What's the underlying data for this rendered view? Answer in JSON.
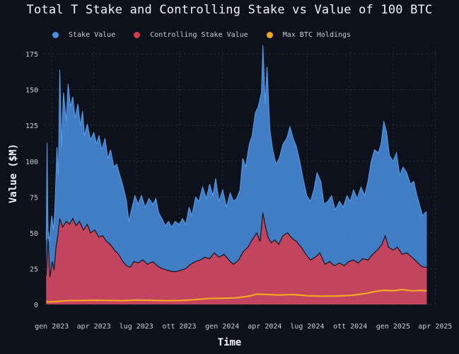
{
  "chart_data": {
    "type": "area",
    "title": "Total T Stake and Controlling Stake vs Value of 100 BTC",
    "xlabel": "Time",
    "ylabel": "Value ($M)",
    "ylim": [
      0,
      180
    ],
    "yticks": [
      0,
      25,
      50,
      75,
      100,
      125,
      150,
      175
    ],
    "xticks": [
      {
        "date": "2023-01-01",
        "label": "gen 2023"
      },
      {
        "date": "2023-04-01",
        "label": "apr 2023"
      },
      {
        "date": "2023-07-01",
        "label": "lug 2023"
      },
      {
        "date": "2023-10-01",
        "label": "ott 2023"
      },
      {
        "date": "2024-01-01",
        "label": "gen 2024"
      },
      {
        "date": "2024-04-01",
        "label": "apr 2024"
      },
      {
        "date": "2024-07-01",
        "label": "lug 2024"
      },
      {
        "date": "2024-10-01",
        "label": "ott 2024"
      },
      {
        "date": "2025-01-01",
        "label": "gen 2025"
      },
      {
        "date": "2025-04-01",
        "label": "apr 2025"
      }
    ],
    "xlim": [
      "2022-12-15",
      "2025-04-05"
    ],
    "grid": true,
    "legend": "top-left",
    "series": [
      {
        "name": "Stake Value",
        "color": "#4a90e2",
        "points": [
          [
            "2022-12-20",
            45
          ],
          [
            "2022-12-22",
            113
          ],
          [
            "2022-12-24",
            52
          ],
          [
            "2022-12-27",
            44
          ],
          [
            "2023-01-01",
            62
          ],
          [
            "2023-01-05",
            52
          ],
          [
            "2023-01-08",
            70
          ],
          [
            "2023-01-12",
            110
          ],
          [
            "2023-01-15",
            90
          ],
          [
            "2023-01-18",
            164
          ],
          [
            "2023-01-22",
            110
          ],
          [
            "2023-01-26",
            148
          ],
          [
            "2023-02-01",
            128
          ],
          [
            "2023-02-05",
            154
          ],
          [
            "2023-02-10",
            138
          ],
          [
            "2023-02-15",
            145
          ],
          [
            "2023-02-20",
            130
          ],
          [
            "2023-02-26",
            140
          ],
          [
            "2023-03-03",
            125
          ],
          [
            "2023-03-08",
            135
          ],
          [
            "2023-03-12",
            118
          ],
          [
            "2023-03-18",
            126
          ],
          [
            "2023-03-25",
            115
          ],
          [
            "2023-04-01",
            120
          ],
          [
            "2023-04-07",
            112
          ],
          [
            "2023-04-12",
            118
          ],
          [
            "2023-04-18",
            108
          ],
          [
            "2023-04-25",
            116
          ],
          [
            "2023-05-01",
            102
          ],
          [
            "2023-05-07",
            108
          ],
          [
            "2023-05-14",
            96
          ],
          [
            "2023-05-20",
            98
          ],
          [
            "2023-05-27",
            90
          ],
          [
            "2023-06-03",
            82
          ],
          [
            "2023-06-10",
            72
          ],
          [
            "2023-06-15",
            58
          ],
          [
            "2023-06-22",
            68
          ],
          [
            "2023-06-28",
            76
          ],
          [
            "2023-07-05",
            70
          ],
          [
            "2023-07-12",
            76
          ],
          [
            "2023-07-20",
            68
          ],
          [
            "2023-07-28",
            74
          ],
          [
            "2023-08-05",
            70
          ],
          [
            "2023-08-12",
            74
          ],
          [
            "2023-08-18",
            64
          ],
          [
            "2023-08-25",
            60
          ],
          [
            "2023-09-01",
            55
          ],
          [
            "2023-09-08",
            58
          ],
          [
            "2023-09-15",
            54
          ],
          [
            "2023-09-22",
            58
          ],
          [
            "2023-10-01",
            56
          ],
          [
            "2023-10-08",
            60
          ],
          [
            "2023-10-15",
            56
          ],
          [
            "2023-10-22",
            68
          ],
          [
            "2023-10-28",
            62
          ],
          [
            "2023-11-05",
            75
          ],
          [
            "2023-11-12",
            72
          ],
          [
            "2023-11-20",
            82
          ],
          [
            "2023-11-28",
            74
          ],
          [
            "2023-12-05",
            84
          ],
          [
            "2023-12-12",
            76
          ],
          [
            "2023-12-18",
            88
          ],
          [
            "2023-12-25",
            72
          ],
          [
            "2024-01-02",
            80
          ],
          [
            "2024-01-10",
            68
          ],
          [
            "2024-01-18",
            78
          ],
          [
            "2024-01-25",
            72
          ],
          [
            "2024-02-01",
            74
          ],
          [
            "2024-02-08",
            80
          ],
          [
            "2024-02-14",
            102
          ],
          [
            "2024-02-20",
            96
          ],
          [
            "2024-02-28",
            112
          ],
          [
            "2024-03-05",
            118
          ],
          [
            "2024-03-12",
            134
          ],
          [
            "2024-03-18",
            138
          ],
          [
            "2024-03-25",
            148
          ],
          [
            "2024-03-28",
            181
          ],
          [
            "2024-04-02",
            140
          ],
          [
            "2024-04-06",
            166
          ],
          [
            "2024-04-12",
            122
          ],
          [
            "2024-04-18",
            108
          ],
          [
            "2024-04-25",
            98
          ],
          [
            "2024-05-02",
            102
          ],
          [
            "2024-05-10",
            112
          ],
          [
            "2024-05-18",
            116
          ],
          [
            "2024-05-25",
            124
          ],
          [
            "2024-06-01",
            116
          ],
          [
            "2024-06-08",
            110
          ],
          [
            "2024-06-15",
            100
          ],
          [
            "2024-06-22",
            88
          ],
          [
            "2024-06-30",
            76
          ],
          [
            "2024-07-08",
            72
          ],
          [
            "2024-07-15",
            80
          ],
          [
            "2024-07-22",
            92
          ],
          [
            "2024-07-30",
            86
          ],
          [
            "2024-08-06",
            70
          ],
          [
            "2024-08-14",
            72
          ],
          [
            "2024-08-22",
            76
          ],
          [
            "2024-08-30",
            66
          ],
          [
            "2024-09-08",
            72
          ],
          [
            "2024-09-16",
            68
          ],
          [
            "2024-09-24",
            76
          ],
          [
            "2024-10-01",
            72
          ],
          [
            "2024-10-08",
            80
          ],
          [
            "2024-10-16",
            74
          ],
          [
            "2024-10-24",
            82
          ],
          [
            "2024-11-01",
            76
          ],
          [
            "2024-11-08",
            86
          ],
          [
            "2024-11-15",
            100
          ],
          [
            "2024-11-22",
            108
          ],
          [
            "2024-11-30",
            106
          ],
          [
            "2024-12-06",
            112
          ],
          [
            "2024-12-12",
            128
          ],
          [
            "2024-12-18",
            120
          ],
          [
            "2024-12-24",
            104
          ],
          [
            "2025-01-01",
            100
          ],
          [
            "2025-01-08",
            106
          ],
          [
            "2025-01-15",
            90
          ],
          [
            "2025-01-22",
            96
          ],
          [
            "2025-01-30",
            92
          ],
          [
            "2025-02-07",
            84
          ],
          [
            "2025-02-14",
            86
          ],
          [
            "2025-02-21",
            76
          ],
          [
            "2025-02-28",
            68
          ],
          [
            "2025-03-05",
            62
          ],
          [
            "2025-03-10",
            64
          ],
          [
            "2025-03-14",
            65
          ]
        ]
      },
      {
        "name": "Controlling Stake Value",
        "color": "#d9394e",
        "points": [
          [
            "2022-12-20",
            20
          ],
          [
            "2022-12-24",
            46
          ],
          [
            "2022-12-28",
            19
          ],
          [
            "2023-01-02",
            30
          ],
          [
            "2023-01-06",
            24
          ],
          [
            "2023-01-10",
            40
          ],
          [
            "2023-01-14",
            48
          ],
          [
            "2023-01-18",
            60
          ],
          [
            "2023-01-24",
            54
          ],
          [
            "2023-02-01",
            58
          ],
          [
            "2023-02-08",
            56
          ],
          [
            "2023-02-15",
            60
          ],
          [
            "2023-02-22",
            55
          ],
          [
            "2023-03-01",
            58
          ],
          [
            "2023-03-10",
            52
          ],
          [
            "2023-03-18",
            56
          ],
          [
            "2023-03-25",
            50
          ],
          [
            "2023-04-03",
            52
          ],
          [
            "2023-04-12",
            47
          ],
          [
            "2023-04-20",
            48
          ],
          [
            "2023-04-28",
            44
          ],
          [
            "2023-05-06",
            42
          ],
          [
            "2023-05-15",
            38
          ],
          [
            "2023-05-24",
            35
          ],
          [
            "2023-06-02",
            30
          ],
          [
            "2023-06-10",
            27
          ],
          [
            "2023-06-18",
            26
          ],
          [
            "2023-06-26",
            30
          ],
          [
            "2023-07-05",
            29
          ],
          [
            "2023-07-15",
            31
          ],
          [
            "2023-07-25",
            28
          ],
          [
            "2023-08-05",
            30
          ],
          [
            "2023-08-15",
            27
          ],
          [
            "2023-08-25",
            25
          ],
          [
            "2023-09-05",
            24
          ],
          [
            "2023-09-15",
            23
          ],
          [
            "2023-09-25",
            23
          ],
          [
            "2023-10-05",
            24
          ],
          [
            "2023-10-15",
            25
          ],
          [
            "2023-10-25",
            28
          ],
          [
            "2023-11-05",
            30
          ],
          [
            "2023-11-15",
            31
          ],
          [
            "2023-11-25",
            33
          ],
          [
            "2023-12-05",
            32
          ],
          [
            "2023-12-15",
            36
          ],
          [
            "2023-12-25",
            33
          ],
          [
            "2024-01-05",
            35
          ],
          [
            "2024-01-15",
            31
          ],
          [
            "2024-01-25",
            28
          ],
          [
            "2024-02-05",
            31
          ],
          [
            "2024-02-15",
            37
          ],
          [
            "2024-02-25",
            40
          ],
          [
            "2024-03-05",
            45
          ],
          [
            "2024-03-15",
            50
          ],
          [
            "2024-03-22",
            44
          ],
          [
            "2024-03-28",
            64
          ],
          [
            "2024-04-02",
            55
          ],
          [
            "2024-04-08",
            47
          ],
          [
            "2024-04-15",
            43
          ],
          [
            "2024-04-22",
            45
          ],
          [
            "2024-05-01",
            42
          ],
          [
            "2024-05-10",
            48
          ],
          [
            "2024-05-20",
            50
          ],
          [
            "2024-05-30",
            46
          ],
          [
            "2024-06-08",
            44
          ],
          [
            "2024-06-18",
            40
          ],
          [
            "2024-06-28",
            35
          ],
          [
            "2024-07-08",
            31
          ],
          [
            "2024-07-18",
            33
          ],
          [
            "2024-07-28",
            36
          ],
          [
            "2024-08-08",
            28
          ],
          [
            "2024-08-18",
            30
          ],
          [
            "2024-08-28",
            27
          ],
          [
            "2024-09-08",
            29
          ],
          [
            "2024-09-18",
            27
          ],
          [
            "2024-09-28",
            30
          ],
          [
            "2024-10-08",
            31
          ],
          [
            "2024-10-18",
            29
          ],
          [
            "2024-10-28",
            32
          ],
          [
            "2024-11-08",
            31
          ],
          [
            "2024-11-18",
            35
          ],
          [
            "2024-11-28",
            38
          ],
          [
            "2024-12-08",
            42
          ],
          [
            "2024-12-15",
            48
          ],
          [
            "2024-12-22",
            40
          ],
          [
            "2025-01-01",
            38
          ],
          [
            "2025-01-10",
            40
          ],
          [
            "2025-01-20",
            35
          ],
          [
            "2025-01-30",
            36
          ],
          [
            "2025-02-10",
            33
          ],
          [
            "2025-02-20",
            30
          ],
          [
            "2025-03-01",
            27
          ],
          [
            "2025-03-08",
            26
          ],
          [
            "2025-03-14",
            26
          ]
        ]
      },
      {
        "name": "Max BTC Holdings",
        "color": "#f5a623",
        "points": [
          [
            "2022-12-20",
            1.8
          ],
          [
            "2023-01-10",
            2.0
          ],
          [
            "2023-02-01",
            2.6
          ],
          [
            "2023-03-01",
            2.7
          ],
          [
            "2023-04-01",
            2.9
          ],
          [
            "2023-05-01",
            2.8
          ],
          [
            "2023-06-01",
            2.6
          ],
          [
            "2023-07-01",
            3.0
          ],
          [
            "2023-08-01",
            2.9
          ],
          [
            "2023-09-01",
            2.6
          ],
          [
            "2023-10-01",
            2.7
          ],
          [
            "2023-11-01",
            3.3
          ],
          [
            "2023-12-01",
            4.1
          ],
          [
            "2024-01-01",
            4.3
          ],
          [
            "2024-02-01",
            4.6
          ],
          [
            "2024-03-01",
            6.0
          ],
          [
            "2024-03-15",
            7.2
          ],
          [
            "2024-04-01",
            7.0
          ],
          [
            "2024-05-01",
            6.6
          ],
          [
            "2024-06-01",
            6.9
          ],
          [
            "2024-07-01",
            6.1
          ],
          [
            "2024-08-01",
            5.8
          ],
          [
            "2024-09-01",
            5.9
          ],
          [
            "2024-10-01",
            6.3
          ],
          [
            "2024-11-01",
            7.5
          ],
          [
            "2024-11-20",
            8.8
          ],
          [
            "2024-12-10",
            9.9
          ],
          [
            "2025-01-01",
            9.6
          ],
          [
            "2025-01-20",
            10.4
          ],
          [
            "2025-02-10",
            9.5
          ],
          [
            "2025-03-01",
            9.8
          ],
          [
            "2025-03-14",
            9.6
          ]
        ]
      }
    ]
  }
}
